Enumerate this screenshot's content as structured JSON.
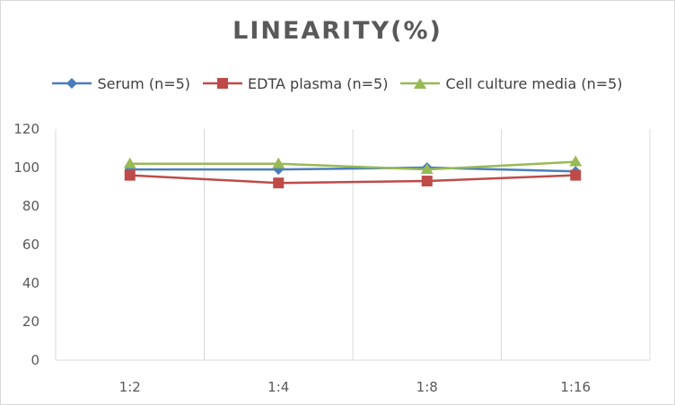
{
  "chart_data": {
    "type": "line",
    "title": "LINEARITY(%)",
    "categories": [
      "1:2",
      "1:4",
      "1:8",
      "1:16"
    ],
    "series": [
      {
        "name": "Serum (n=5)",
        "color": "#4a7ebb",
        "marker": "diamond",
        "values": [
          99,
          99,
          100,
          98
        ]
      },
      {
        "name": "EDTA plasma (n=5)",
        "color": "#be4b48",
        "marker": "square",
        "values": [
          96,
          92,
          93,
          96
        ]
      },
      {
        "name": "Cell culture media (n=5)",
        "color": "#98b954",
        "marker": "triangle",
        "values": [
          102,
          102,
          99,
          103
        ]
      }
    ],
    "ylim": [
      0,
      120
    ],
    "yticks": [
      "0",
      "20",
      "40",
      "60",
      "80",
      "100",
      "120"
    ],
    "grid": "vertical",
    "legend_position": "top"
  }
}
